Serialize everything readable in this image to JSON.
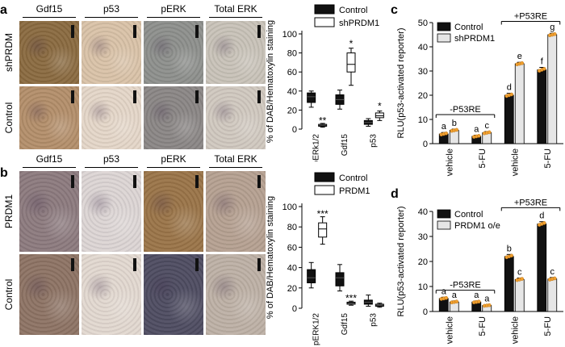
{
  "panels": {
    "a": {
      "label": "a",
      "headers": [
        "Gdf15",
        "p53",
        "pERK",
        "Total ERK"
      ],
      "rows": [
        "shPRDM",
        "Control"
      ],
      "tile_colors": [
        [
          "#8a6a40",
          "#d9c2a8",
          "#8d8f8c",
          "#c8c2b8"
        ],
        [
          "#b38e6a",
          "#e4d6c8",
          "#8a8685",
          "#d0c8bf"
        ]
      ]
    },
    "b": {
      "label": "b",
      "headers": [
        "Gdf15",
        "p53",
        "pERK",
        "Total ERK"
      ],
      "rows": [
        "PRDM1",
        "Control"
      ],
      "tile_colors": [
        [
          "#8c7a7e",
          "#dcd5d4",
          "#9a7448",
          "#b5a091"
        ],
        [
          "#8d7364",
          "#e2d8d0",
          "#4e4c61",
          "#bdb0a5"
        ]
      ]
    },
    "c": {
      "label": "c"
    },
    "d": {
      "label": "d"
    }
  },
  "chart_data": [
    {
      "id": "a-box",
      "type": "box",
      "ylabel": "% of DAB/Hematoxylin staining",
      "ylim": [
        0,
        100
      ],
      "yticks": [
        0,
        20,
        40,
        60,
        80,
        100
      ],
      "categories": [
        "pERk1/2",
        "Gdf15",
        "p53"
      ],
      "legend": [
        "Control",
        "shPRDM1"
      ],
      "series": [
        {
          "name": "Control",
          "fill": "#111111",
          "boxes": [
            {
              "min": 23,
              "q1": 28,
              "median": 34,
              "q3": 38,
              "max": 40
            },
            {
              "min": 21,
              "q1": 26,
              "median": 31,
              "q3": 36,
              "max": 41
            },
            {
              "min": 3,
              "q1": 5,
              "median": 7,
              "q3": 9,
              "max": 11
            }
          ]
        },
        {
          "name": "shPRDM1",
          "fill": "#ffffff",
          "boxes": [
            {
              "min": 2,
              "q1": 3,
              "median": 4,
              "q3": 5,
              "max": 6
            },
            {
              "min": 46,
              "q1": 60,
              "median": 68,
              "q3": 80,
              "max": 85
            },
            {
              "min": 9,
              "q1": 12,
              "median": 14,
              "q3": 17,
              "max": 19
            }
          ]
        }
      ],
      "annotations": [
        {
          "text": "**",
          "series": 1,
          "cat": 0,
          "y": 9
        },
        {
          "text": "*",
          "series": 1,
          "cat": 1,
          "y": 90
        },
        {
          "text": "*",
          "series": 1,
          "cat": 2,
          "y": 24
        }
      ]
    },
    {
      "id": "b-box",
      "type": "box",
      "ylabel": "% of DAB/Hematoxylin staining",
      "ylim": [
        0,
        100
      ],
      "yticks": [
        0,
        20,
        40,
        60,
        80,
        100
      ],
      "categories": [
        "pERK1/2",
        "Gdf15",
        "p53"
      ],
      "legend": [
        "Control",
        "PRDM1"
      ],
      "series": [
        {
          "name": "Control",
          "fill": "#111111",
          "boxes": [
            {
              "min": 20,
              "q1": 25,
              "median": 30,
              "q3": 38,
              "max": 45
            },
            {
              "min": 17,
              "q1": 22,
              "median": 30,
              "q3": 35,
              "max": 43
            },
            {
              "min": 2,
              "q1": 4,
              "median": 6,
              "q3": 8,
              "max": 13
            }
          ]
        },
        {
          "name": "PRDM1",
          "fill": "#ffffff",
          "boxes": [
            {
              "min": 63,
              "q1": 70,
              "median": 78,
              "q3": 84,
              "max": 90
            },
            {
              "min": 3,
              "q1": 4,
              "median": 5,
              "q3": 6,
              "max": 7
            },
            {
              "min": 1,
              "q1": 2,
              "median": 3,
              "q3": 4,
              "max": 5
            }
          ]
        }
      ],
      "annotations": [
        {
          "text": "***",
          "series": 1,
          "cat": 0,
          "y": 93
        },
        {
          "text": "***",
          "series": 1,
          "cat": 1,
          "y": 10
        }
      ]
    },
    {
      "id": "c-bar",
      "type": "bar",
      "ylabel": "RLU(p53-activated reporter)",
      "ylim": [
        0,
        50
      ],
      "yticks": [
        0,
        10,
        20,
        30,
        40,
        50
      ],
      "categories": [
        "vehicle",
        "5-FU",
        "vehicle",
        "5-FU"
      ],
      "series": [
        {
          "name": "Control",
          "values": [
            4,
            3,
            20,
            30.5
          ],
          "errors": [
            0.6,
            0.5,
            0.8,
            1.0
          ],
          "letters": [
            "a",
            "a",
            "d",
            "f"
          ]
        },
        {
          "name": "shPRDM1",
          "values": [
            5.5,
            4.5,
            33,
            45
          ],
          "errors": [
            0.5,
            0.5,
            0.6,
            0.6
          ],
          "letters": [
            "b",
            "c",
            "e",
            "g"
          ]
        }
      ],
      "brackets": [
        {
          "text": "-P53RE",
          "from": 0,
          "to": 1,
          "y": 12
        },
        {
          "text": "+P53RE",
          "from": 2,
          "to": 3,
          "y": 50.5
        }
      ],
      "bar_colors": [
        "#111111",
        "#e6e6e6"
      ],
      "dot_color": "#f0a030"
    },
    {
      "id": "d-bar",
      "type": "bar",
      "ylabel": "RLU(p53-activated reporter)",
      "ylim": [
        0,
        40
      ],
      "yticks": [
        0,
        10,
        20,
        30,
        40
      ],
      "categories": [
        "vehicle",
        "5-FU",
        "vehicle",
        "5-FU"
      ],
      "series": [
        {
          "name": "Control",
          "values": [
            5.2,
            3.8,
            22,
            35
          ],
          "errors": [
            0.5,
            0.4,
            0.8,
            0.9
          ],
          "letters": [
            "a",
            "a",
            "b",
            "d"
          ]
        },
        {
          "name": "PRDM1 o/e",
          "values": [
            3.8,
            2.4,
            12.8,
            13
          ],
          "errors": [
            0.4,
            0.3,
            0.6,
            0.6
          ],
          "letters": [
            "a",
            "a",
            "c",
            "c"
          ]
        }
      ],
      "brackets": [
        {
          "text": "-P53RE",
          "from": 0,
          "to": 1,
          "y": 8.5
        },
        {
          "text": "+P53RE",
          "from": 2,
          "to": 3,
          "y": 41.5
        }
      ],
      "bar_colors": [
        "#111111",
        "#e6e6e6"
      ],
      "dot_color": "#f0a030"
    }
  ]
}
